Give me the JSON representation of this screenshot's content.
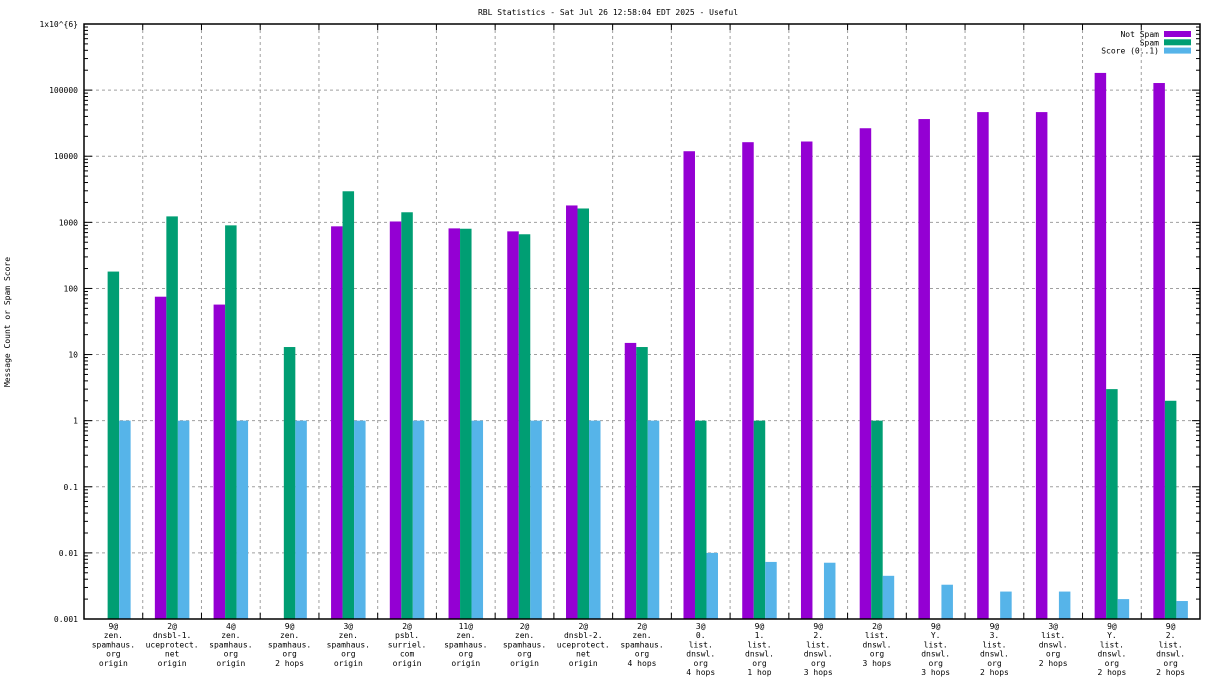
{
  "chart_data": {
    "type": "bar",
    "title": "RBL Statistics - Sat Jul 26 12:58:04 EDT 2025 - Useful",
    "xlabel": "",
    "ylabel": "Message Count or Spam Score",
    "yscale": "log",
    "ylim": [
      0.001,
      1000000
    ],
    "yticks": [
      "0.001",
      "0.01",
      "0.1",
      "1",
      "10",
      "100",
      "1000",
      "10000",
      "100000",
      "1x10^{6}"
    ],
    "grid": true,
    "legend_position": "top-right",
    "categories": [
      [
        "9@",
        "zen.",
        "spamhaus.",
        "org",
        "origin"
      ],
      [
        "2@",
        "dnsbl-1.",
        "uceprotect.",
        "net",
        "origin"
      ],
      [
        "4@",
        "zen.",
        "spamhaus.",
        "org",
        "origin"
      ],
      [
        "9@",
        "zen.",
        "spamhaus.",
        "org",
        "2 hops"
      ],
      [
        "3@",
        "zen.",
        "spamhaus.",
        "org",
        "origin"
      ],
      [
        "2@",
        "psbl.",
        "surriel.",
        "com",
        "origin"
      ],
      [
        "11@",
        "zen.",
        "spamhaus.",
        "org",
        "origin"
      ],
      [
        "2@",
        "zen.",
        "spamhaus.",
        "org",
        "origin"
      ],
      [
        "2@",
        "dnsbl-2.",
        "uceprotect.",
        "net",
        "origin"
      ],
      [
        "2@",
        "zen.",
        "spamhaus.",
        "org",
        "4 hops"
      ],
      [
        "3@",
        "0.",
        "list.",
        "dnswl.",
        "org",
        "4 hops"
      ],
      [
        "9@",
        "1.",
        "list.",
        "dnswl.",
        "org",
        "1 hop"
      ],
      [
        "9@",
        "2.",
        "list.",
        "dnswl.",
        "org",
        "3 hops"
      ],
      [
        "2@",
        "list.",
        "dnswl.",
        "org",
        "3 hops"
      ],
      [
        "9@",
        "Y.",
        "list.",
        "dnswl.",
        "org",
        "3 hops"
      ],
      [
        "9@",
        "3.",
        "list.",
        "dnswl.",
        "org",
        "2 hops"
      ],
      [
        "3@",
        "list.",
        "dnswl.",
        "org",
        "2 hops"
      ],
      [
        "9@",
        "Y.",
        "list.",
        "dnswl.",
        "org",
        "2 hops"
      ],
      [
        "9@",
        "2.",
        "list.",
        "dnswl.",
        "org",
        "2 hops"
      ]
    ],
    "series": [
      {
        "name": "Not Spam",
        "color": "#9400d3",
        "values": [
          null,
          75,
          57,
          null,
          870,
          1030,
          810,
          730,
          1800,
          15,
          11900,
          16300,
          16700,
          26500,
          36500,
          46500,
          46500,
          182000,
          128000
        ]
      },
      {
        "name": "Spam",
        "color": "#009e73",
        "values": [
          180,
          1230,
          900,
          13,
          2950,
          1420,
          800,
          660,
          1620,
          13,
          1,
          1,
          null,
          1,
          null,
          null,
          null,
          3,
          2
        ]
      },
      {
        "name": "Score (0..1)",
        "color": "#56b4e9",
        "values": [
          1,
          1,
          1,
          1,
          1,
          1,
          1,
          1,
          1,
          1,
          0.01,
          0.0073,
          0.0071,
          0.0045,
          0.0033,
          0.0026,
          0.0026,
          0.002,
          0.00187
        ]
      }
    ]
  }
}
